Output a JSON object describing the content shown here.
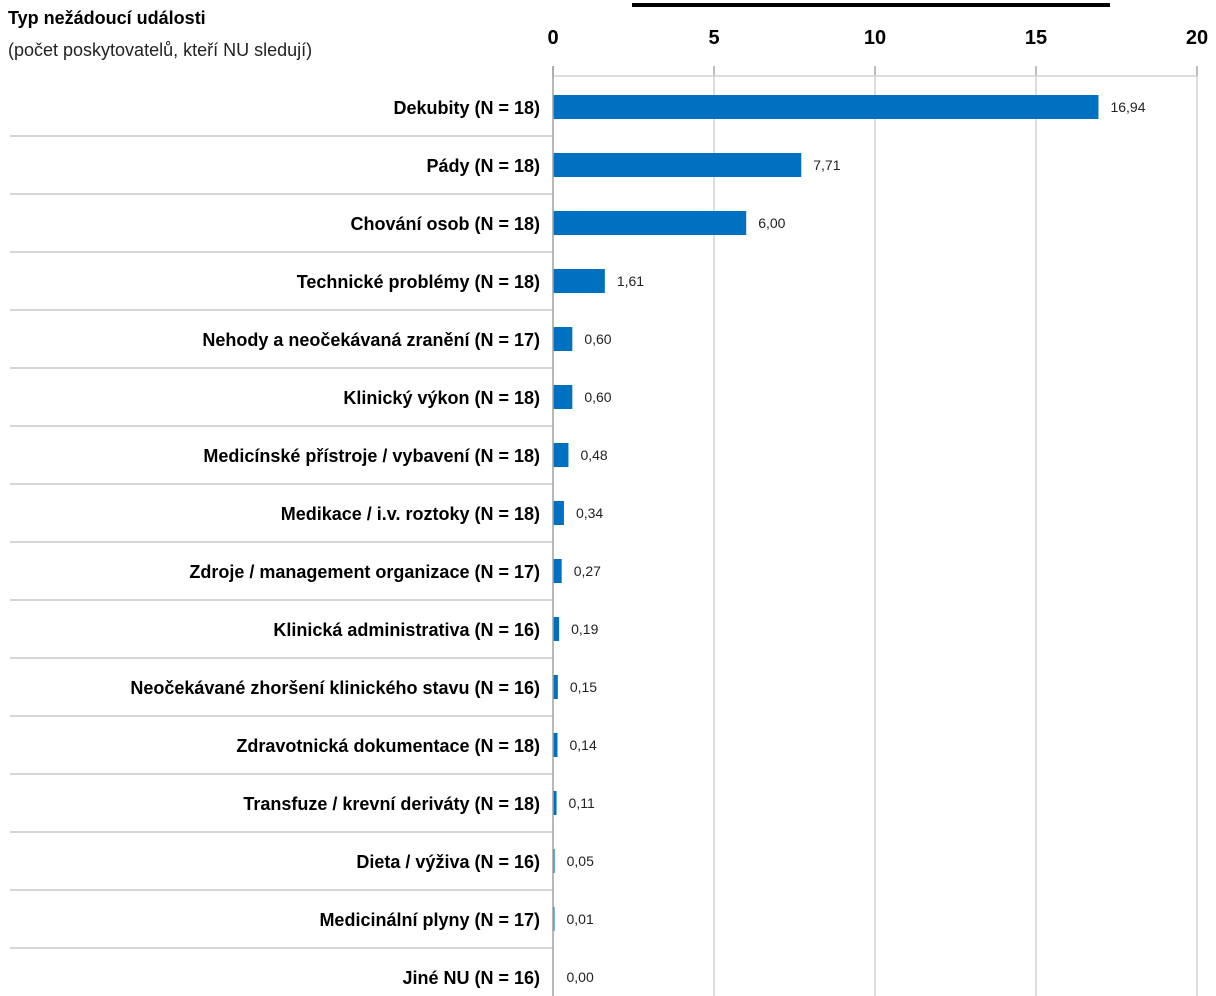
{
  "header": {
    "title": "Typ nežádoucí události",
    "subtitle": "(počet poskytovatelů, kteří NU sledují)"
  },
  "colors": {
    "bar": "#0070c0",
    "grid": "#d0d0d0",
    "separator": "#c8c8c8"
  },
  "chart_data": {
    "type": "bar",
    "orientation": "horizontal",
    "xlim": [
      0,
      20
    ],
    "xticks": [
      0,
      5,
      10,
      15,
      20
    ],
    "grid": true,
    "categories": [
      "Dekubity (N = 18)",
      "Pády (N = 18)",
      "Chování osob (N = 18)",
      "Technické problémy (N = 18)",
      "Nehody a neočekávaná zranění (N = 17)",
      "Klinický výkon (N = 18)",
      "Medicínské přístroje / vybavení (N = 18)",
      "Medikace / i.v. roztoky (N = 18)",
      "Zdroje / management organizace (N = 17)",
      "Klinická administrativa (N = 16)",
      "Neočekávané zhoršení klinického stavu (N = 16)",
      "Zdravotnická dokumentace (N = 18)",
      "Transfuze / krevní deriváty (N = 18)",
      "Dieta / výživa (N = 16)",
      "Medicinální plyny (N = 17)",
      "Jiné NU (N = 16)"
    ],
    "values": [
      16.94,
      7.71,
      6.0,
      1.61,
      0.6,
      0.6,
      0.48,
      0.34,
      0.27,
      0.19,
      0.15,
      0.14,
      0.11,
      0.05,
      0.01,
      0.0
    ],
    "data_labels": [
      "16,94",
      "7,71",
      "6,00",
      "1,61",
      "0,60",
      "0,60",
      "0,48",
      "0,34",
      "0,27",
      "0,19",
      "0,15",
      "0,14",
      "0,11",
      "0,05",
      "0,01",
      "0,00"
    ]
  }
}
